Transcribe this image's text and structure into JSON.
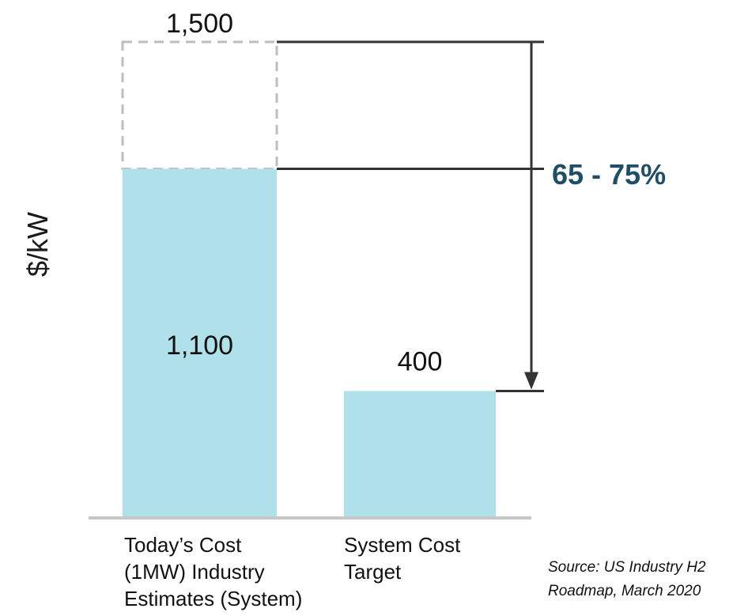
{
  "chart_data": {
    "type": "bar",
    "categories": [
      "Today’s Cost\n(1MW) Industry\nEstimates (System)",
      "System Cost\nTarget"
    ],
    "values": [
      1100,
      400
    ],
    "previous_value": 1500,
    "previous_label": "1,500",
    "value_labels": [
      "1,100",
      "400"
    ],
    "reduction_label": "65 - 75%",
    "ylabel": "$/kW",
    "ylim": [
      0,
      1500
    ],
    "bar_color": "#b0e0ea",
    "accent_color": "#1f4e66",
    "source": "Source: US Industry H2\nRoadmap, March 2020"
  }
}
